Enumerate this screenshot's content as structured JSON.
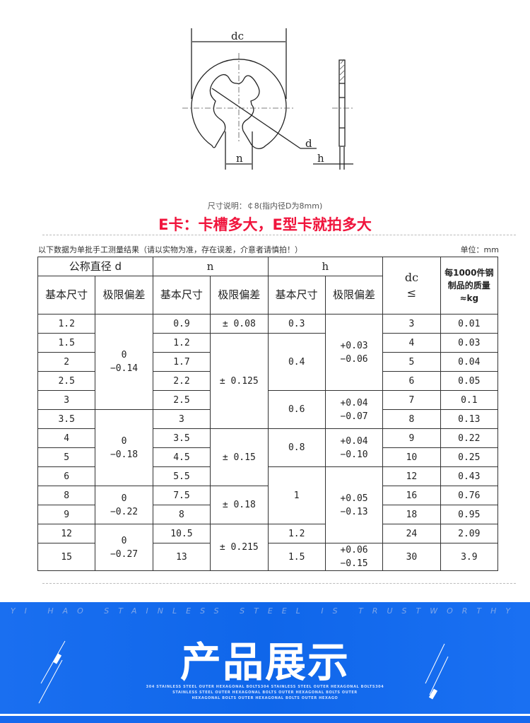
{
  "drawing": {
    "dc_label": "dc",
    "d_label": "d",
    "n_label": "n",
    "h_label": "h"
  },
  "size_note": "尺寸说明：￠8(指内径D为8mm)",
  "headline": "E卡：卡槽多大，E型卡就拍多大",
  "table_note": "以下数据为单批手工测量结果（请以实物为准，存在误差，介意者请慎拍！）",
  "unit": "单位：mm",
  "table": {
    "headers": {
      "nominal_d": "公称直径 d",
      "n": "n",
      "h": "h",
      "dc": "dc",
      "dc_sym": "≤",
      "mass": "每1000件钢制品的质量≈kg",
      "basic": "基本尺寸",
      "tol": "极限偏差"
    },
    "d": [
      "1.2",
      "1.5",
      "2",
      "2.5",
      "3",
      "3.5",
      "4",
      "5",
      "6",
      "8",
      "9",
      "12",
      "15"
    ],
    "d_tol": [
      {
        "text": "0\n−0.14",
        "rows": 5
      },
      {
        "text": "0\n−0.18",
        "rows": 4
      },
      {
        "text": "0\n−0.22",
        "rows": 2
      },
      {
        "text": "0\n−0.27",
        "rows": 2
      }
    ],
    "n": [
      "0.9",
      "1.2",
      "1.7",
      "2.2",
      "2.5",
      "3",
      "3.5",
      "4.5",
      "5.5",
      "7.5",
      "8",
      "10.5",
      "13"
    ],
    "n_tol": [
      {
        "text": "± 0.08",
        "rows": 1
      },
      {
        "text": "± 0.125",
        "rows": 5
      },
      {
        "text": "± 0.15",
        "rows": 3
      },
      {
        "text": "± 0.18",
        "rows": 2
      },
      {
        "text": "± 0.215",
        "rows": 2
      }
    ],
    "h": [
      {
        "text": "0.3",
        "rows": 1
      },
      {
        "text": "0.4",
        "rows": 3
      },
      {
        "text": "0.6",
        "rows": 2
      },
      {
        "text": "0.8",
        "rows": 2
      },
      {
        "text": "1",
        "rows": 3
      },
      {
        "text": "1.2",
        "rows": 1
      },
      {
        "text": "1.5",
        "rows": 1
      }
    ],
    "h_tol": [
      {
        "text": "+0.03\n−0.06",
        "rows": 4
      },
      {
        "text": "+0.04\n−0.07",
        "rows": 2
      },
      {
        "text": "+0.04\n−0.10",
        "rows": 2
      },
      {
        "text": "+0.05\n−0.13",
        "rows": 4
      },
      {
        "text": "+0.06\n−0.15",
        "rows": 1
      }
    ],
    "dc": [
      "3",
      "4",
      "5",
      "6",
      "7",
      "8",
      "9",
      "10",
      "12",
      "16",
      "18",
      "24",
      "30"
    ],
    "mass": [
      "0.01",
      "0.03",
      "0.04",
      "0.05",
      "0.1",
      "0.13",
      "0.22",
      "0.25",
      "0.43",
      "0.76",
      "0.95",
      "2.09",
      "3.9"
    ]
  },
  "banner": {
    "top_text": "YI HAO STAINLESS STEEL IS TRUSTWORTHY",
    "title": "产品展示",
    "sub": [
      "304 STAINLESS STEEL OUTER HEXAGONAL BOLTS304 STAINLESS STEEL OUTER HEXAGONAL BOLTS304",
      "STAINLESS STEEL OUTER HEXAGONAL BOLTS OUTER HEXAGONAL BOLTS OUTER",
      "HEXAGONAL BOLTS OUTER HEXAGONAL BOLTS OUTER HEXAGO"
    ],
    "color": "#1a6ff0"
  },
  "colors": {
    "headline": "#f0143c",
    "line": "#333333"
  }
}
